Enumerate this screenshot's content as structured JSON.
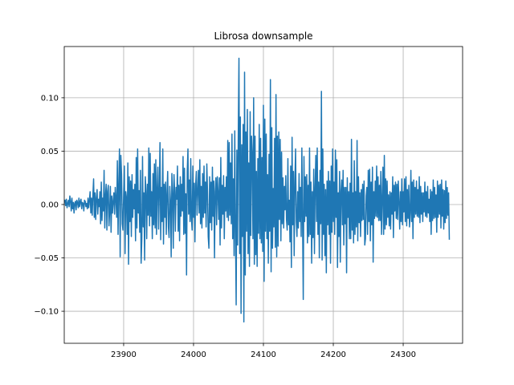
{
  "chart_data": {
    "type": "line",
    "title": "Librosa downsample",
    "xlabel": "",
    "ylabel": "",
    "xlim": [
      23815,
      24385
    ],
    "ylim": [
      -0.13,
      0.148
    ],
    "xticks": [
      23900,
      24000,
      24100,
      24200,
      24300
    ],
    "yticks": [
      0.1,
      0.05,
      0.0,
      -0.05,
      -0.1
    ],
    "xtick_labels": [
      "23900",
      "24000",
      "24100",
      "24200",
      "24300"
    ],
    "ytick_labels": [
      "0.10",
      "0.05",
      "0.00",
      "−0.05",
      "−0.10"
    ],
    "grid": true,
    "series": [
      {
        "color": "#1f77b4",
        "x_start": 23815,
        "x_step": 1,
        "values": [
          0.002,
          0.004,
          -0.001,
          0.005,
          -0.003,
          0.001,
          0.004,
          -0.002,
          0.008,
          0.003,
          -0.006,
          0.006,
          -0.004,
          0.002,
          -0.008,
          0.001,
          0.003,
          -0.005,
          0.004,
          0.002,
          -0.003,
          0.006,
          -0.002,
          0.003,
          0.005,
          -0.004,
          0.002,
          0.001,
          -0.006,
          0.004,
          0.003,
          -0.002,
          0.001,
          -0.004,
          0.006,
          -0.003,
          0.004,
          0.012,
          -0.008,
          0.006,
          -0.01,
          0.009,
          0.024,
          -0.012,
          0.011,
          -0.014,
          0.006,
          0.014,
          -0.009,
          0.005,
          -0.002,
          0.012,
          -0.018,
          0.021,
          -0.015,
          0.006,
          -0.006,
          0.032,
          -0.022,
          0.008,
          0.019,
          -0.024,
          0.012,
          0.018,
          -0.02,
          -0.006,
          0.017,
          -0.026,
          0.008,
          -0.008,
          0.003,
          0.011,
          -0.009,
          0.016,
          0.005,
          -0.012,
          0.041,
          -0.028,
          0.017,
          0.052,
          -0.049,
          0.046,
          0.028,
          -0.018,
          -0.024,
          0.01,
          0.036,
          -0.046,
          0.012,
          0.006,
          -0.028,
          0.039,
          -0.056,
          0.026,
          -0.016,
          0.022,
          -0.03,
          0.028,
          -0.012,
          0.014,
          -0.004,
          0.019,
          -0.034,
          0.044,
          -0.022,
          0.052,
          -0.008,
          0.013,
          -0.026,
          0.032,
          -0.055,
          -0.032,
          0.045,
          -0.021,
          0.011,
          -0.052,
          0.026,
          0.012,
          -0.032,
          0.019,
          -0.01,
          0.053,
          -0.02,
          0.048,
          -0.011,
          0.012,
          -0.032,
          0.029,
          -0.019,
          0.038,
          -0.022,
          0.042,
          -0.028,
          0.014,
          0.035,
          -0.023,
          0.012,
          0.058,
          -0.033,
          0.016,
          -0.016,
          0.052,
          -0.037,
          0.019,
          -0.012,
          0.021,
          -0.028,
          0.01,
          0.031,
          -0.021,
          -0.031,
          0.017,
          0.003,
          -0.049,
          0.029,
          0.011,
          -0.041,
          0.028,
          0.012,
          -0.025,
          0.016,
          0.005,
          0.036,
          -0.025,
          0.018,
          -0.034,
          0.026,
          -0.011,
          0.019,
          -0.006,
          0.045,
          -0.028,
          0.034,
          -0.027,
          0.01,
          -0.066,
          0.031,
          0.052,
          -0.009,
          0.023,
          -0.016,
          0.043,
          -0.013,
          -0.024,
          0.036,
          -0.012,
          0.02,
          -0.035,
          0.018,
          0.031,
          -0.01,
          0.013,
          0.032,
          -0.008,
          0.042,
          -0.018,
          0.017,
          -0.022,
          0.029,
          -0.012,
          0.036,
          -0.008,
          0.021,
          -0.021,
          0.038,
          0.012,
          -0.03,
          -0.041,
          0.026,
          -0.017,
          0.021,
          -0.024,
          0.035,
          -0.011,
          0.022,
          -0.05,
          0.012,
          0.025,
          -0.019,
          0.026,
          0.012,
          -0.014,
          0.025,
          -0.038,
          0.044,
          -0.022,
          0.018,
          -0.009,
          0.027,
          -0.032,
          0.016,
          -0.006,
          0.026,
          -0.012,
          0.06,
          -0.015,
          0.058,
          -0.01,
          0.039,
          -0.018,
          0.066,
          -0.032,
          0.024,
          -0.048,
          0.069,
          -0.024,
          -0.094,
          0.051,
          -0.038,
          0.064,
          0.137,
          -0.046,
          0.082,
          -0.102,
          0.056,
          -0.03,
          0.075,
          -0.11,
          0.124,
          -0.066,
          0.068,
          -0.025,
          0.089,
          -0.046,
          0.039,
          -0.058,
          0.087,
          -0.029,
          0.064,
          0.047,
          -0.032,
          0.1,
          -0.056,
          0.064,
          -0.047,
          0.031,
          -0.058,
          0.043,
          -0.027,
          0.075,
          -0.032,
          0.062,
          -0.036,
          0.044,
          -0.044,
          0.093,
          -0.072,
          0.08,
          -0.025,
          0.066,
          -0.032,
          0.028,
          -0.055,
          0.047,
          -0.025,
          0.117,
          -0.063,
          0.072,
          -0.041,
          0.015,
          -0.021,
          0.062,
          -0.04,
          0.103,
          -0.049,
          0.064,
          -0.039,
          0.068,
          -0.014,
          0.061,
          -0.034,
          0.049,
          -0.018,
          0.025,
          -0.022,
          0.017,
          -0.005,
          0.027,
          -0.014,
          -0.024,
          0.043,
          -0.019,
          0.004,
          -0.035,
          0.036,
          -0.059,
          0.063,
          -0.019,
          0.031,
          -0.048,
          0.021,
          0.052,
          -0.016,
          -0.03,
          0.012,
          -0.022,
          0.029,
          -0.016,
          0.016,
          -0.03,
          0.053,
          -0.014,
          -0.089,
          0.045,
          -0.016,
          0.026,
          -0.011,
          0.028,
          -0.036,
          0.018,
          -0.03,
          0.053,
          -0.028,
          0.021,
          -0.055,
          0.012,
          -0.031,
          0.033,
          -0.046,
          0.016,
          0.046,
          -0.016,
          0.053,
          -0.028,
          0.021,
          -0.05,
          0.032,
          -0.018,
          0.106,
          -0.052,
          0.052,
          -0.028,
          0.019,
          -0.048,
          0.014,
          -0.064,
          0.022,
          -0.019,
          0.031,
          -0.028,
          0.022,
          -0.055,
          0.036,
          -0.026,
          0.052,
          -0.016,
          0.021,
          -0.028,
          0.051,
          -0.012,
          0.042,
          -0.059,
          0.011,
          -0.03,
          0.031,
          -0.054,
          0.012,
          0.023,
          -0.019,
          0.032,
          -0.038,
          0.016,
          -0.018,
          0.016,
          -0.064,
          0.025,
          -0.012,
          0.012,
          -0.032,
          0.02,
          -0.032,
          0.061,
          -0.024,
          0.011,
          -0.036,
          0.041,
          -0.028,
          0.012,
          -0.021,
          0.06,
          -0.034,
          0.026,
          -0.017,
          0.011,
          -0.03,
          0.014,
          -0.015,
          0.019,
          -0.014,
          0.022,
          -0.038,
          -0.032,
          0.008,
          0.016,
          -0.028,
          0.032,
          -0.016,
          0.033,
          -0.034,
          0.021,
          -0.019,
          0.035,
          -0.054,
          0.012,
          -0.013,
          0.022,
          -0.011,
          0.036,
          -0.012,
          0.026,
          -0.015,
          0.018,
          -0.015,
          0.031,
          -0.028,
          0.005,
          0.035,
          -0.028,
          0.046,
          -0.023,
          0.024,
          -0.019,
          0.022,
          -0.012,
          0.009,
          -0.02,
          0.012,
          -0.023,
          0.011,
          -0.009,
          0.026,
          -0.031,
          0.018,
          -0.006,
          0.021,
          -0.013,
          0.019,
          -0.014,
          0.022,
          0.003,
          -0.023,
          0.012,
          -0.016,
          0.024,
          -0.019,
          0.012,
          -0.007,
          0.024,
          -0.016,
          0.026,
          -0.02,
          0.014,
          -0.013,
          0.018,
          -0.021,
          -0.008,
          0.032,
          -0.016,
          0.021,
          -0.032,
          0.023,
          -0.012,
          0.016,
          -0.009,
          0.022,
          -0.011,
          0.014,
          -0.012,
          0.026,
          -0.017,
          0.017,
          -0.009,
          0.011,
          -0.016,
          0.011,
          -0.007,
          0.021,
          -0.011,
          0.012,
          -0.012,
          0.017,
          -0.008,
          0.005,
          -0.016,
          0.014,
          -0.028,
          0.012,
          -0.015,
          0.023,
          -0.013,
          0.016,
          -0.012,
          0.009,
          -0.026,
          0.022,
          -0.012,
          0.018,
          -0.009,
          0.019,
          -0.022,
          0.023,
          -0.011,
          0.014,
          -0.023,
          0.013,
          -0.017,
          0.022,
          -0.013,
          0.016,
          -0.01,
          0.011,
          -0.033
        ]
      }
    ]
  }
}
